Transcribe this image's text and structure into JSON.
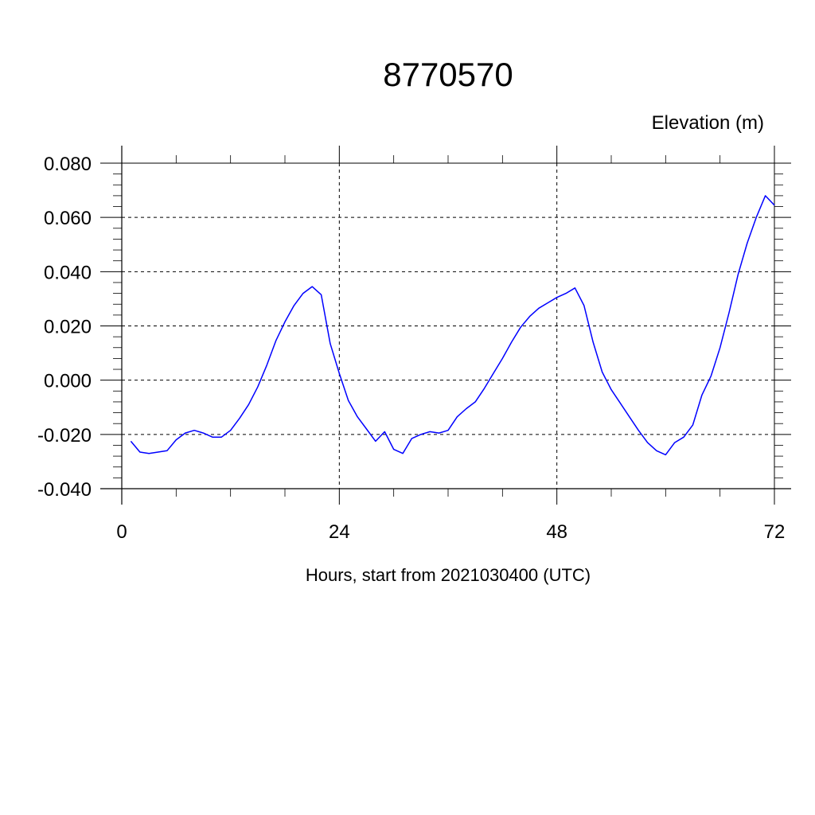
{
  "chart_data": {
    "type": "line",
    "title": "8770570",
    "ylabel": "Elevation (m)",
    "xlabel": "Hours, start from 2021030400 (UTC)",
    "xlim": [
      0,
      72
    ],
    "ylim": [
      -0.04,
      0.08
    ],
    "x_ticks": [
      0,
      24,
      48,
      72
    ],
    "x_tick_labels": [
      "0",
      "24",
      "48",
      "72"
    ],
    "y_ticks": [
      -0.04,
      -0.02,
      0.0,
      0.02,
      0.04,
      0.06,
      0.08
    ],
    "y_tick_labels": [
      "-0.040",
      "-0.020",
      "0.000",
      "0.020",
      "0.040",
      "0.060",
      "0.080"
    ],
    "grid": true,
    "line_color": "#0000ff",
    "series": [
      {
        "x": [
          1,
          2,
          3,
          4,
          5,
          6,
          7,
          8,
          9,
          10,
          11,
          12,
          13,
          14,
          15,
          16,
          17,
          18,
          19,
          20,
          21,
          22,
          23,
          24,
          25,
          26,
          27,
          28,
          29,
          30,
          31,
          32,
          33,
          34,
          35,
          36,
          37,
          38,
          39,
          40,
          41,
          42,
          43,
          44,
          45,
          46,
          47,
          48,
          49,
          50,
          51,
          52,
          53,
          54,
          55,
          56,
          57,
          58,
          59,
          60,
          61,
          62,
          63,
          64,
          65,
          66,
          67,
          68,
          69,
          70,
          71,
          72
        ],
        "values": [
          -0.0225,
          -0.0265,
          -0.027,
          -0.0265,
          -0.026,
          -0.022,
          -0.0195,
          -0.0185,
          -0.0195,
          -0.021,
          -0.021,
          -0.0185,
          -0.014,
          -0.009,
          -0.0025,
          0.0055,
          0.0145,
          0.0215,
          0.0275,
          0.032,
          0.0345,
          0.0315,
          0.0135,
          0.0025,
          -0.0075,
          -0.0135,
          -0.018,
          -0.0225,
          -0.019,
          -0.0255,
          -0.027,
          -0.0215,
          -0.02,
          -0.019,
          -0.0195,
          -0.0185,
          -0.0135,
          -0.0105,
          -0.008,
          -0.003,
          0.0025,
          0.008,
          0.014,
          0.0195,
          0.0235,
          0.0265,
          0.0285,
          0.0305,
          0.032,
          0.034,
          0.0275,
          0.014,
          0.003,
          -0.0035,
          -0.0085,
          -0.0135,
          -0.0185,
          -0.023,
          -0.026,
          -0.0275,
          -0.023,
          -0.021,
          -0.0165,
          -0.0055,
          0.0015,
          0.012,
          0.025,
          0.039,
          0.0505,
          0.06,
          0.068,
          0.0645
        ]
      }
    ]
  }
}
